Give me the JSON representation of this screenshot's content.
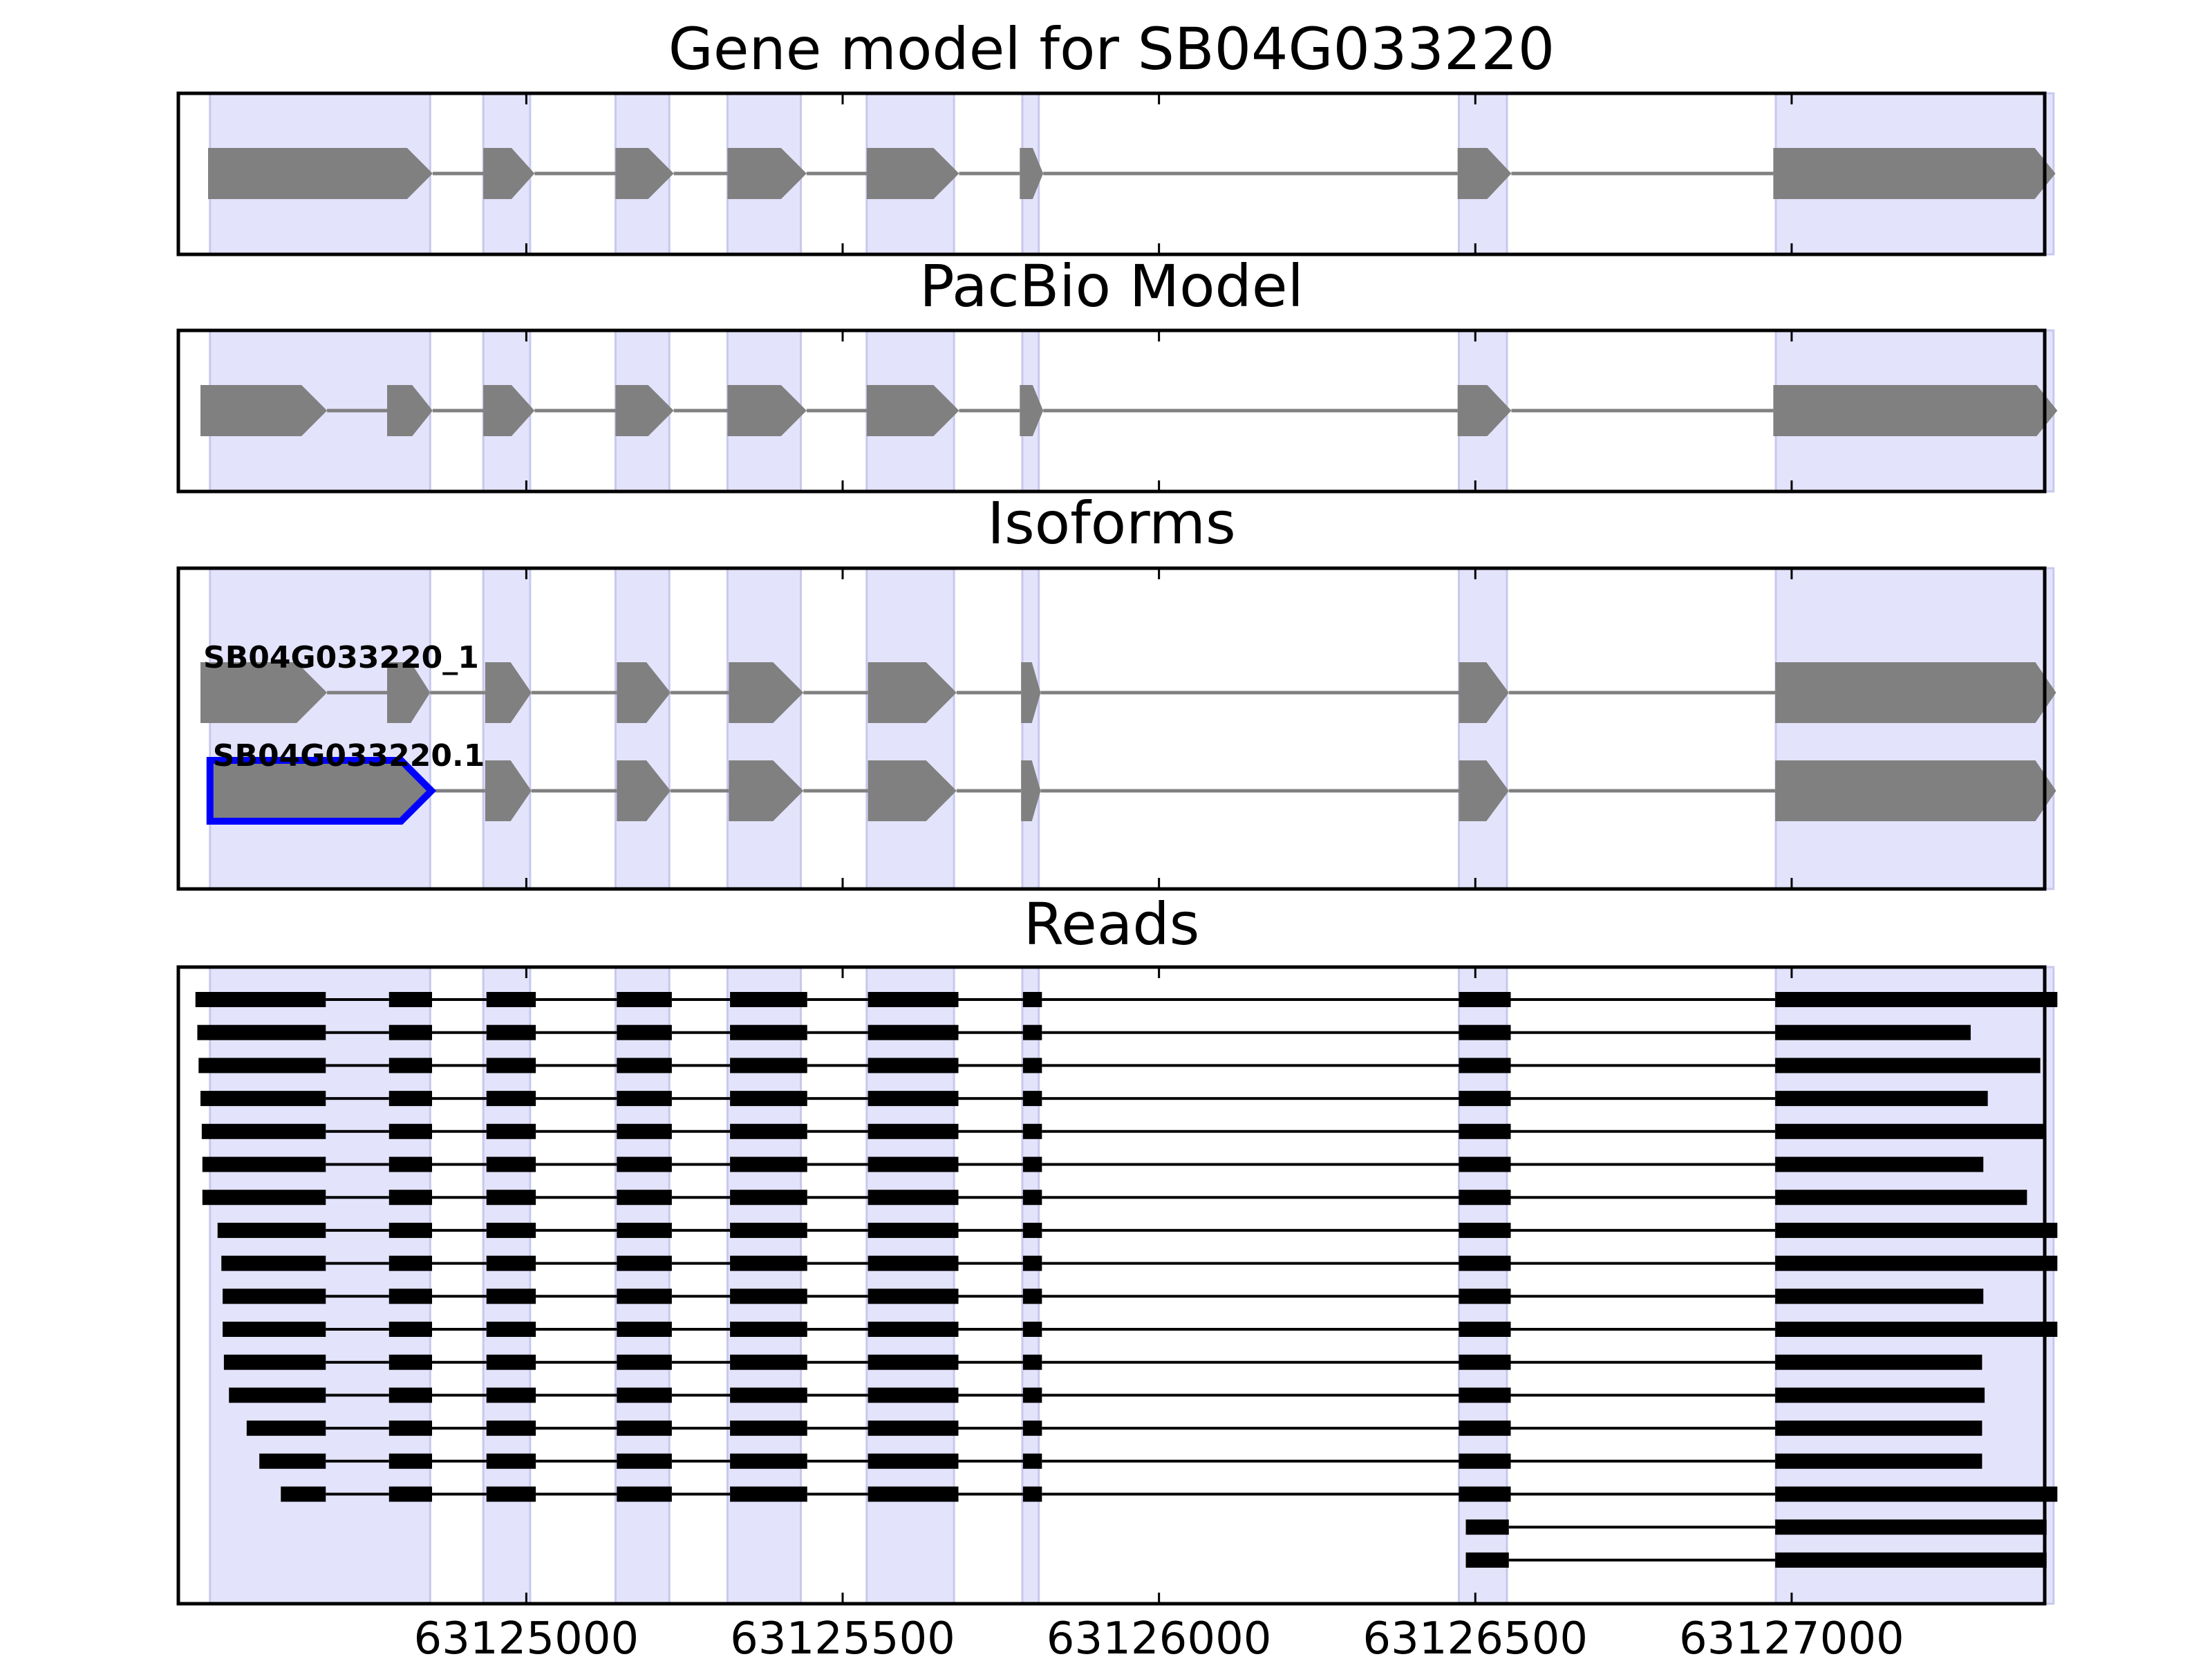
{
  "chart_data": {
    "type": "gene-model",
    "x_axis": {
      "range": [
        63124450,
        63127400
      ],
      "ticks": [
        63125000,
        63125500,
        63126000,
        63126500,
        63127000
      ],
      "tick_labels": [
        "63125000",
        "63125500",
        "63126000",
        "63126500",
        "63127000"
      ]
    },
    "colors": {
      "exon_fill": "#808080",
      "intron_line": "#808080",
      "highlight": "#e3e3fb",
      "selected_outline": "#0000ff",
      "read": "#000000",
      "frame": "#000000"
    },
    "exon_highlights": [
      [
        63124500,
        63124848
      ],
      [
        63124932,
        63125006
      ],
      [
        63125141,
        63125226
      ],
      [
        63125318,
        63125434
      ],
      [
        63125538,
        63125676
      ],
      [
        63125784,
        63125810
      ],
      [
        63126474,
        63126550
      ],
      [
        63126975,
        63127414
      ]
    ],
    "panels": [
      {
        "title": "Gene model for SB04G033220",
        "tracks": [
          {
            "exons": [
              [
                63124497,
                63124852
              ],
              [
                63124932,
                63125013
              ],
              [
                63125141,
                63125233
              ],
              [
                63125318,
                63125443
              ],
              [
                63125538,
                63125684
              ],
              [
                63125780,
                63125817
              ],
              [
                63126472,
                63126557
              ],
              [
                63126971,
                63127417
              ]
            ],
            "strand": "+"
          }
        ]
      },
      {
        "title": "PacBio Model",
        "tracks": [
          {
            "exons": [
              [
                63124485,
                63124685
              ],
              [
                63124780,
                63124852
              ],
              [
                63124932,
                63125013
              ],
              [
                63125141,
                63125233
              ],
              [
                63125318,
                63125443
              ],
              [
                63125538,
                63125684
              ],
              [
                63125780,
                63125817
              ],
              [
                63126472,
                63126557
              ],
              [
                63126971,
                63127420
              ]
            ],
            "strand": "+"
          }
        ]
      },
      {
        "title": "Isoforms",
        "tracks": [
          {
            "label": "SB04G033220_1",
            "exons": [
              [
                63124485,
                63124685
              ],
              [
                63124780,
                63124848
              ],
              [
                63124935,
                63125008
              ],
              [
                63125143,
                63125228
              ],
              [
                63125320,
                63125438
              ],
              [
                63125540,
                63125680
              ],
              [
                63125782,
                63125813
              ],
              [
                63126474,
                63126553
              ],
              [
                63126974,
                63127418
              ]
            ],
            "strand": "+",
            "selected": false
          },
          {
            "label": "SB04G033220.1",
            "exons": [
              [
                63124500,
                63124850
              ],
              [
                63124935,
                63125008
              ],
              [
                63125143,
                63125228
              ],
              [
                63125320,
                63125438
              ],
              [
                63125540,
                63125680
              ],
              [
                63125782,
                63125813
              ],
              [
                63126474,
                63126553
              ],
              [
                63126974,
                63127418
              ]
            ],
            "strand": "+",
            "selected": true
          }
        ]
      },
      {
        "title": "Reads",
        "reads": [
          {
            "exons": [
              [
                63124477,
                63124683
              ],
              [
                63124783,
                63124851
              ],
              [
                63124937,
                63125015
              ],
              [
                63125143,
                63125230
              ],
              [
                63125322,
                63125444
              ],
              [
                63125540,
                63125683
              ],
              [
                63125785,
                63125815
              ],
              [
                63126474,
                63126556
              ],
              [
                63126974,
                63127420
              ]
            ]
          },
          {
            "exons": [
              [
                63124480,
                63124683
              ],
              [
                63124783,
                63124851
              ],
              [
                63124937,
                63125015
              ],
              [
                63125143,
                63125230
              ],
              [
                63125322,
                63125444
              ],
              [
                63125540,
                63125683
              ],
              [
                63125785,
                63125815
              ],
              [
                63126474,
                63126556
              ],
              [
                63126974,
                63127283
              ]
            ]
          },
          {
            "exons": [
              [
                63124482,
                63124683
              ],
              [
                63124783,
                63124851
              ],
              [
                63124937,
                63125015
              ],
              [
                63125143,
                63125230
              ],
              [
                63125322,
                63125444
              ],
              [
                63125540,
                63125683
              ],
              [
                63125785,
                63125815
              ],
              [
                63126474,
                63126556
              ],
              [
                63126974,
                63127393
              ]
            ]
          },
          {
            "exons": [
              [
                63124485,
                63124683
              ],
              [
                63124783,
                63124851
              ],
              [
                63124937,
                63125015
              ],
              [
                63125143,
                63125230
              ],
              [
                63125322,
                63125444
              ],
              [
                63125540,
                63125683
              ],
              [
                63125785,
                63125815
              ],
              [
                63126474,
                63126556
              ],
              [
                63126974,
                63127310
              ]
            ]
          },
          {
            "exons": [
              [
                63124487,
                63124683
              ],
              [
                63124783,
                63124851
              ],
              [
                63124937,
                63125015
              ],
              [
                63125143,
                63125230
              ],
              [
                63125322,
                63125444
              ],
              [
                63125540,
                63125683
              ],
              [
                63125785,
                63125815
              ],
              [
                63126474,
                63126556
              ],
              [
                63126974,
                63127400
              ]
            ]
          },
          {
            "exons": [
              [
                63124488,
                63124683
              ],
              [
                63124783,
                63124851
              ],
              [
                63124937,
                63125015
              ],
              [
                63125143,
                63125230
              ],
              [
                63125322,
                63125444
              ],
              [
                63125540,
                63125683
              ],
              [
                63125785,
                63125815
              ],
              [
                63126474,
                63126556
              ],
              [
                63126974,
                63127303
              ]
            ]
          },
          {
            "exons": [
              [
                63124488,
                63124683
              ],
              [
                63124783,
                63124851
              ],
              [
                63124937,
                63125015
              ],
              [
                63125143,
                63125230
              ],
              [
                63125322,
                63125444
              ],
              [
                63125540,
                63125683
              ],
              [
                63125785,
                63125815
              ],
              [
                63126474,
                63126556
              ],
              [
                63126974,
                63127372
              ]
            ]
          },
          {
            "exons": [
              [
                63124512,
                63124683
              ],
              [
                63124783,
                63124851
              ],
              [
                63124937,
                63125015
              ],
              [
                63125143,
                63125230
              ],
              [
                63125322,
                63125444
              ],
              [
                63125540,
                63125683
              ],
              [
                63125785,
                63125815
              ],
              [
                63126474,
                63126556
              ],
              [
                63126974,
                63127420
              ]
            ]
          },
          {
            "exons": [
              [
                63124518,
                63124683
              ],
              [
                63124783,
                63124851
              ],
              [
                63124937,
                63125015
              ],
              [
                63125143,
                63125230
              ],
              [
                63125322,
                63125444
              ],
              [
                63125540,
                63125683
              ],
              [
                63125785,
                63125815
              ],
              [
                63126474,
                63126556
              ],
              [
                63126974,
                63127420
              ]
            ]
          },
          {
            "exons": [
              [
                63124520,
                63124683
              ],
              [
                63124783,
                63124851
              ],
              [
                63124937,
                63125015
              ],
              [
                63125143,
                63125230
              ],
              [
                63125322,
                63125444
              ],
              [
                63125540,
                63125683
              ],
              [
                63125785,
                63125815
              ],
              [
                63126474,
                63126556
              ],
              [
                63126974,
                63127303
              ]
            ]
          },
          {
            "exons": [
              [
                63124520,
                63124683
              ],
              [
                63124783,
                63124851
              ],
              [
                63124937,
                63125015
              ],
              [
                63125143,
                63125230
              ],
              [
                63125322,
                63125444
              ],
              [
                63125540,
                63125683
              ],
              [
                63125785,
                63125815
              ],
              [
                63126474,
                63126556
              ],
              [
                63126974,
                63127420
              ]
            ]
          },
          {
            "exons": [
              [
                63124522,
                63124683
              ],
              [
                63124783,
                63124851
              ],
              [
                63124937,
                63125015
              ],
              [
                63125143,
                63125230
              ],
              [
                63125322,
                63125444
              ],
              [
                63125540,
                63125683
              ],
              [
                63125785,
                63125815
              ],
              [
                63126474,
                63126556
              ],
              [
                63126974,
                63127301
              ]
            ]
          },
          {
            "exons": [
              [
                63124530,
                63124683
              ],
              [
                63124783,
                63124851
              ],
              [
                63124937,
                63125015
              ],
              [
                63125143,
                63125230
              ],
              [
                63125322,
                63125444
              ],
              [
                63125540,
                63125683
              ],
              [
                63125785,
                63125815
              ],
              [
                63126474,
                63126556
              ],
              [
                63126974,
                63127305
              ]
            ]
          },
          {
            "exons": [
              [
                63124558,
                63124683
              ],
              [
                63124783,
                63124851
              ],
              [
                63124937,
                63125015
              ],
              [
                63125143,
                63125230
              ],
              [
                63125322,
                63125444
              ],
              [
                63125540,
                63125683
              ],
              [
                63125785,
                63125815
              ],
              [
                63126474,
                63126556
              ],
              [
                63126974,
                63127301
              ]
            ]
          },
          {
            "exons": [
              [
                63124578,
                63124683
              ],
              [
                63124783,
                63124851
              ],
              [
                63124937,
                63125015
              ],
              [
                63125143,
                63125230
              ],
              [
                63125322,
                63125444
              ],
              [
                63125540,
                63125683
              ],
              [
                63125785,
                63125815
              ],
              [
                63126474,
                63126556
              ],
              [
                63126974,
                63127301
              ]
            ]
          },
          {
            "exons": [
              [
                63124612,
                63124683
              ],
              [
                63124783,
                63124851
              ],
              [
                63124937,
                63125015
              ],
              [
                63125143,
                63125230
              ],
              [
                63125322,
                63125444
              ],
              [
                63125540,
                63125683
              ],
              [
                63125785,
                63125815
              ],
              [
                63126474,
                63126556
              ],
              [
                63126974,
                63127420
              ]
            ]
          },
          {
            "exons": [
              [
                63126485,
                63126553
              ],
              [
                63126974,
                63127403
              ]
            ]
          },
          {
            "exons": [
              [
                63126485,
                63126553
              ],
              [
                63126974,
                63127403
              ]
            ]
          }
        ]
      }
    ]
  }
}
